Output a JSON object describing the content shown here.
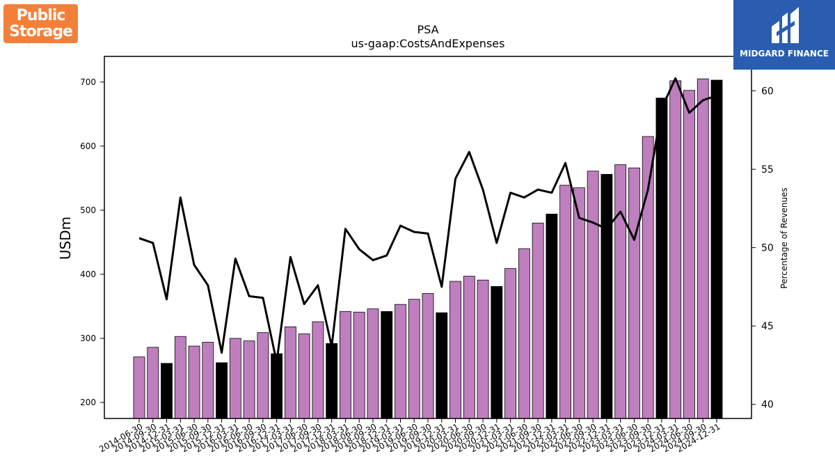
{
  "chart_data": {
    "type": "bar",
    "title": "PSA",
    "subtitle": "us-gaap:CostsAndExpenses",
    "ylabel": "USDm",
    "y2label": "Percentage of Revenues",
    "ylim": [
      175,
      740
    ],
    "y2lim": [
      39.1,
      62.2
    ],
    "yticks": [
      200,
      300,
      400,
      500,
      600,
      700
    ],
    "y2ticks": [
      40,
      45,
      50,
      55,
      60
    ],
    "categories": [
      "2014-06-30",
      "2014-09-30",
      "2014-12-31",
      "2015-03-31",
      "2015-06-30",
      "2015-09-30",
      "2015-12-31",
      "2016-03-31",
      "2016-06-30",
      "2016-09-30",
      "2016-12-31",
      "2017-03-31",
      "2017-06-30",
      "2017-09-30",
      "2017-12-31",
      "2018-03-31",
      "2018-06-30",
      "2018-09-30",
      "2018-12-31",
      "2019-03-31",
      "2019-06-30",
      "2019-09-30",
      "2019-12-31",
      "2020-03-31",
      "2020-06-30",
      "2020-09-30",
      "2020-12-31",
      "2021-03-31",
      "2021-06-30",
      "2021-09-30",
      "2021-12-31",
      "2022-03-31",
      "2022-06-30",
      "2022-09-30",
      "2022-12-31",
      "2023-03-31",
      "2023-06-30",
      "2023-09-30",
      "2023-12-31",
      "2024-03-31",
      "2024-06-30",
      "2024-09-30",
      "2024-12-31"
    ],
    "series": [
      {
        "type": "bar",
        "axis": "left",
        "values": [
          271,
          286,
          261,
          303,
          288,
          294,
          262,
          300,
          296,
          309,
          276,
          318,
          307,
          326,
          292,
          342,
          341,
          346,
          342,
          353,
          361,
          370,
          340,
          389,
          397,
          391,
          381,
          409,
          440,
          480,
          494,
          539,
          535,
          561,
          556,
          571,
          566,
          615,
          675,
          702,
          687,
          705,
          703
        ],
        "colors": [
          "#bf7fbf",
          "#bf7fbf",
          "#000000",
          "#bf7fbf",
          "#bf7fbf",
          "#bf7fbf",
          "#000000",
          "#bf7fbf",
          "#bf7fbf",
          "#bf7fbf",
          "#000000",
          "#bf7fbf",
          "#bf7fbf",
          "#bf7fbf",
          "#000000",
          "#bf7fbf",
          "#bf7fbf",
          "#bf7fbf",
          "#000000",
          "#bf7fbf",
          "#bf7fbf",
          "#bf7fbf",
          "#000000",
          "#bf7fbf",
          "#bf7fbf",
          "#bf7fbf",
          "#000000",
          "#bf7fbf",
          "#bf7fbf",
          "#bf7fbf",
          "#000000",
          "#bf7fbf",
          "#bf7fbf",
          "#bf7fbf",
          "#000000",
          "#bf7fbf",
          "#bf7fbf",
          "#bf7fbf",
          "#000000",
          "#bf7fbf",
          "#bf7fbf",
          "#bf7fbf",
          "#000000"
        ]
      },
      {
        "type": "line",
        "axis": "right",
        "color": "#000000",
        "values": [
          50.6,
          50.3,
          46.7,
          53.2,
          48.9,
          47.6,
          43.3,
          49.3,
          46.9,
          46.8,
          42.7,
          49.4,
          46.4,
          47.6,
          43.7,
          51.2,
          49.9,
          49.2,
          49.5,
          51.4,
          51.0,
          50.9,
          47.5,
          54.4,
          56.1,
          53.7,
          50.3,
          53.5,
          53.2,
          53.7,
          53.5,
          55.4,
          51.9,
          51.6,
          51.2,
          52.3,
          50.5,
          53.7,
          58.9,
          60.8,
          58.6,
          59.4,
          59.7
        ]
      }
    ]
  },
  "logos": {
    "left": {
      "lines": [
        "Public",
        "Storage"
      ],
      "color": "#f47f38"
    },
    "right": {
      "text": "MIDGARD FINANCE",
      "color": "#2a5db0"
    }
  }
}
